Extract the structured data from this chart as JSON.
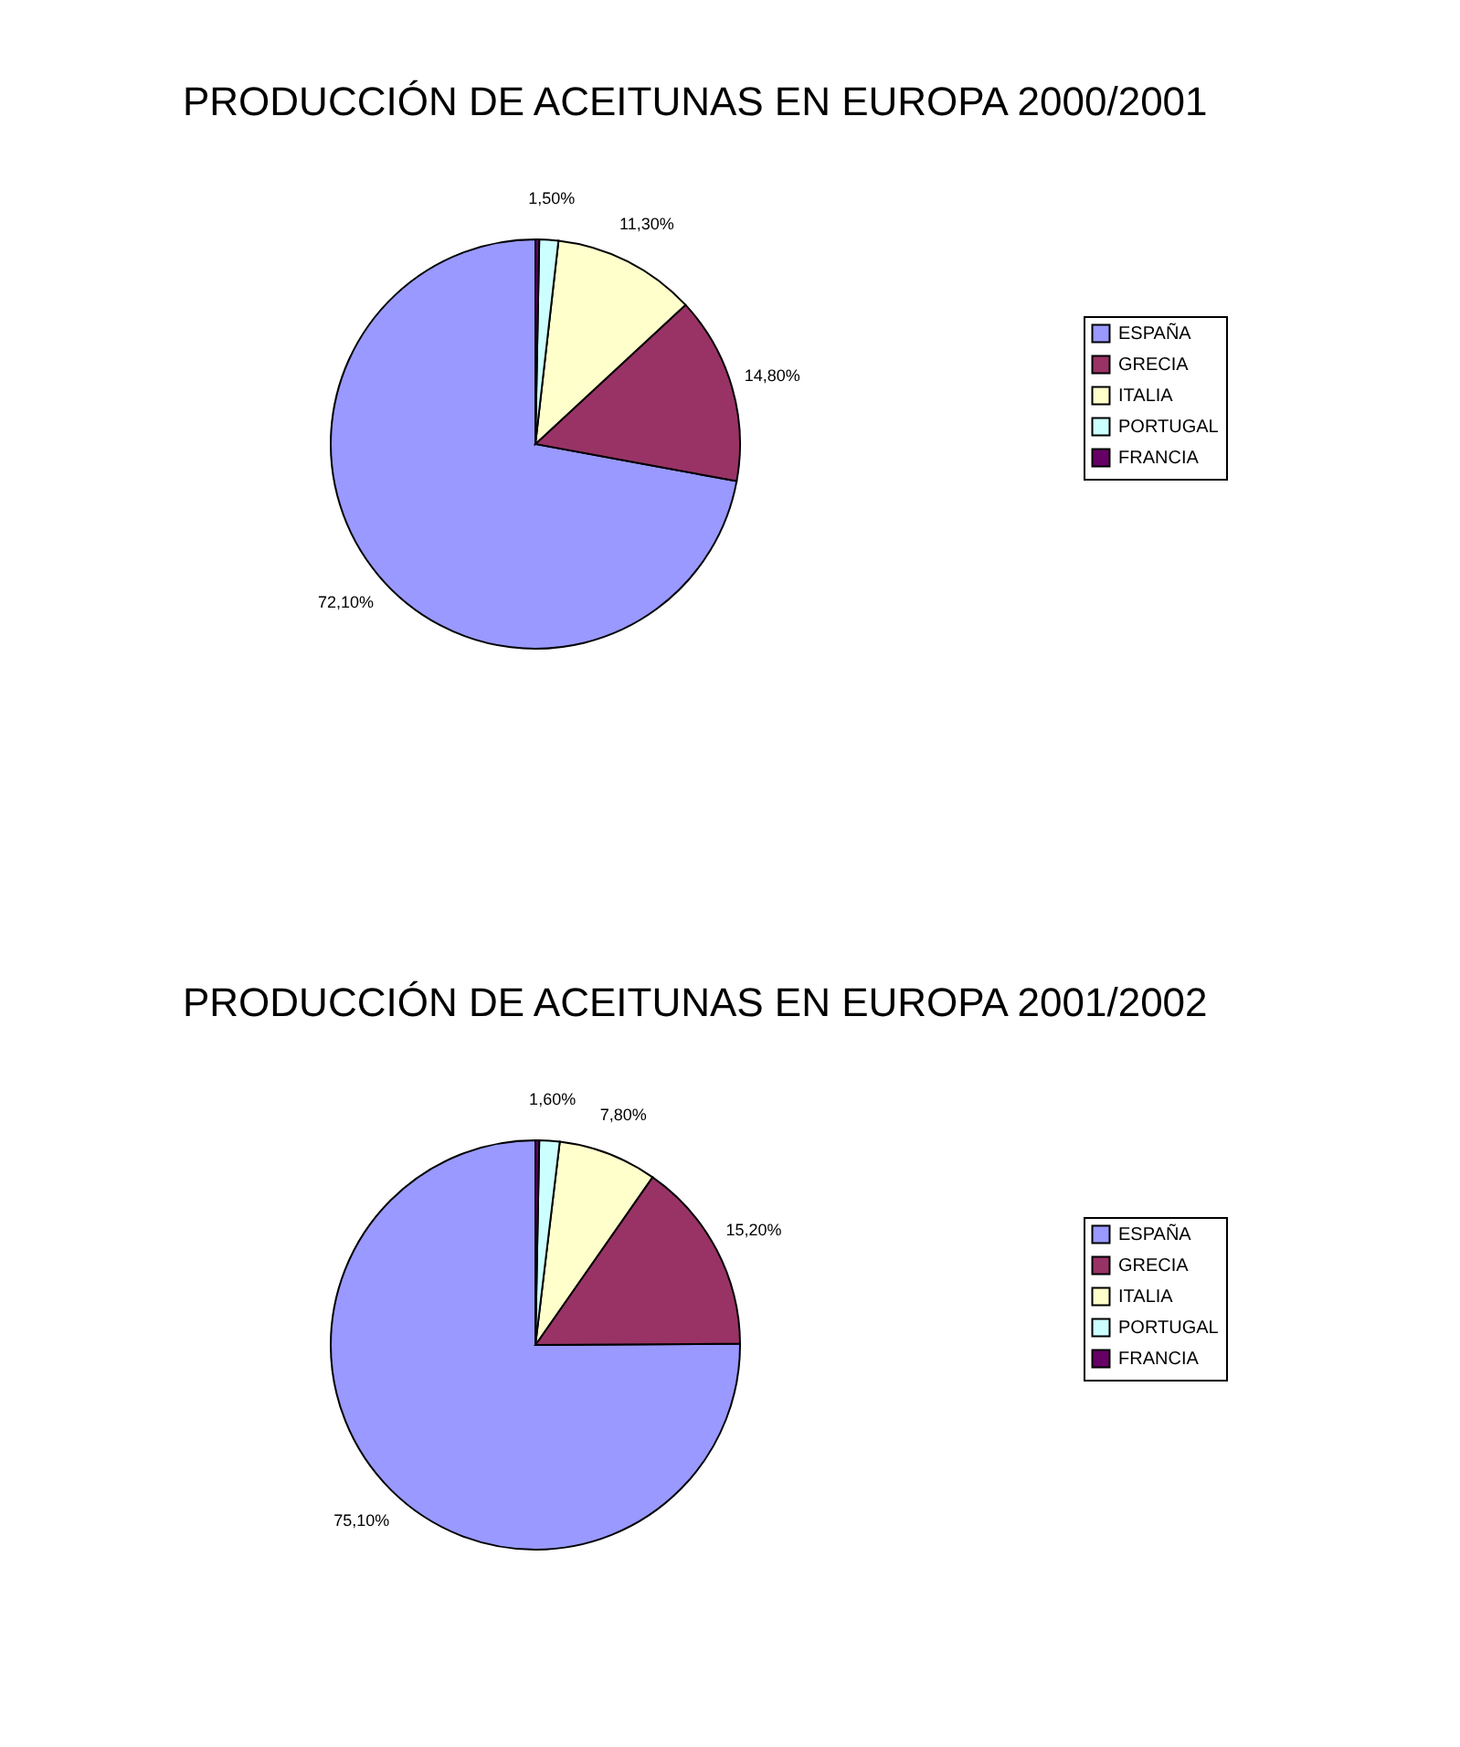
{
  "chart_data": [
    {
      "type": "pie",
      "title": "PRODUCCIÓN DE ACEITUNAS EN EUROPA 2000/2001",
      "categories": [
        "ESPAÑA",
        "GRECIA",
        "ITALIA",
        "PORTUGAL",
        "FRANCIA"
      ],
      "values": [
        72.1,
        14.8,
        11.3,
        1.5,
        0.3
      ],
      "colors": [
        "#9999ff",
        "#993366",
        "#ffffcc",
        "#ccffff",
        "#660066"
      ],
      "value_labels": [
        "72,10%",
        "14,80%",
        "11,30%",
        "1,50%",
        null
      ],
      "legend": "right"
    },
    {
      "type": "pie",
      "title": "PRODUCCIÓN DE ACEITUNAS EN EUROPA 2001/2002",
      "categories": [
        "ESPAÑA",
        "GRECIA",
        "ITALIA",
        "PORTUGAL",
        "FRANCIA"
      ],
      "values": [
        75.1,
        15.2,
        7.8,
        1.6,
        0.3
      ],
      "colors": [
        "#9999ff",
        "#993366",
        "#ffffcc",
        "#ccffff",
        "#660066"
      ],
      "value_labels": [
        "75,10%",
        "15,20%",
        "7,80%",
        "1,60%",
        null
      ],
      "legend": "right"
    }
  ]
}
